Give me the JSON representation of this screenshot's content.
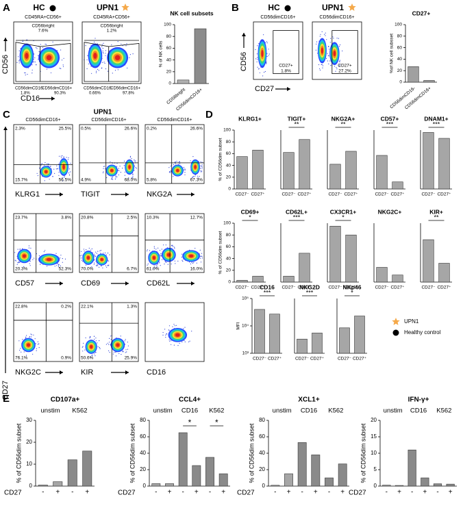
{
  "panel_a": {
    "label": "A",
    "y_axis": "CD56",
    "x_axis": "CD16",
    "plots": [
      {
        "title": "HC",
        "gate": "CD45RA+CD56+",
        "top": [
          "CD56bright",
          "7.6%"
        ],
        "bottom_left": [
          "CD56dimCD16-",
          "1.8%"
        ],
        "bottom_right": [
          "CD56dimCD16+",
          "90.3%"
        ]
      },
      {
        "title": "UPN1",
        "gate": "CD45RA+CD56+",
        "top": [
          "CD56bright",
          "1.2%"
        ],
        "bottom_left": [
          "CD56dimCD16-",
          "0.66%"
        ],
        "bottom_right": [
          "CD56dimCD16+",
          "97.8%"
        ]
      }
    ]
  },
  "panel_b": {
    "label": "B",
    "y_axis": "CD56",
    "x_axis": "CD27",
    "plots": [
      {
        "title": "HC",
        "gate": "CD56dimCD16+",
        "inner": [
          "CD27+",
          "1.8%"
        ]
      },
      {
        "title": "UPN1",
        "gate": "CD56dimCD16+",
        "inner": [
          "CD27+",
          "27.2%"
        ]
      }
    ]
  },
  "panel_c": {
    "label": "C",
    "title": "UPN1",
    "y_axis": "CD27",
    "plots": [
      {
        "gate": "CD56dimCD16+",
        "x_axis": "KLRG1",
        "quadrants": [
          "2.3%",
          "25.5%",
          "15.7%",
          "56.5%"
        ]
      },
      {
        "gate": "CD56dimCD16+",
        "x_axis": "TIGIT",
        "quadrants": [
          "0.5%",
          "26.6%",
          "4.9%",
          "68.0%"
        ]
      },
      {
        "gate": "CD56dimCD16+",
        "x_axis": "NKG2A",
        "quadrants": [
          "0.2%",
          "26.6%",
          "5.8%",
          "67.3%"
        ]
      },
      {
        "x_axis": "CD57",
        "quadrants": [
          "23.7%",
          "3.8%",
          "20.3%",
          "52.3%"
        ]
      },
      {
        "x_axis": "CD69",
        "quadrants": [
          "20.8%",
          "2.5%",
          "70.0%",
          "6.7%"
        ]
      },
      {
        "x_axis": "CD62L",
        "quadrants": [
          "10.3%",
          "12.7%",
          "61.0%",
          "16.0%"
        ]
      },
      {
        "x_axis": "NKG2C",
        "quadrants": [
          "22.8%",
          "0.2%",
          "76.1%",
          "0.9%"
        ]
      },
      {
        "x_axis": "KIR",
        "quadrants": [
          "22.1%",
          "1.3%",
          "50.6%",
          "25.9%"
        ]
      },
      {
        "x_axis": "CD16"
      }
    ]
  },
  "panel_d": {
    "label": "D",
    "legend": [
      "UPN1",
      "Healthy control"
    ]
  },
  "panel_e": {
    "label": "E"
  },
  "chart_data": [
    {
      "type": "bar",
      "title": "NK cell subsets",
      "ylabel": "% of NK cells",
      "categories": [
        "CD56bright",
        "CD56dimCD16+"
      ],
      "values": [
        6,
        93
      ],
      "ylim": [
        0,
        100
      ],
      "yticks": [
        0,
        20,
        40,
        60,
        80,
        100
      ],
      "colors": [
        "#b0b0b0",
        "#8c8c8c"
      ]
    },
    {
      "type": "bar",
      "title": "CD27+",
      "ylabel": "%of NK cell subsset",
      "categories": [
        "CD56dimCD16-",
        "CD56dimCD16+"
      ],
      "values": [
        27,
        3
      ],
      "ylim": [
        0,
        100
      ],
      "yticks": [
        0,
        20,
        40,
        60,
        80,
        100
      ],
      "colors": [
        "#a0a0a0",
        "#a0a0a0"
      ]
    },
    {
      "type": "bar",
      "title": "KLRG1+",
      "ylabel": "% of CD56dim subset",
      "categories": [
        "CD27⁻",
        "CD27⁺"
      ],
      "values": [
        55,
        66
      ],
      "ylim": [
        0,
        100
      ],
      "yticks": [
        0,
        20,
        40,
        60,
        80,
        100
      ],
      "colors": [
        "#a6a6a6",
        "#a6a6a6"
      ]
    },
    {
      "type": "bar",
      "title": "TIGIT+",
      "categories": [
        "CD27⁻",
        "CD27⁺"
      ],
      "values": [
        62,
        84
      ],
      "ylim": [
        0,
        100
      ],
      "significance": [
        "**"
      ],
      "colors": [
        "#a6a6a6",
        "#a6a6a6"
      ]
    },
    {
      "type": "bar",
      "title": "NKG2A+",
      "categories": [
        "CD27⁻",
        "CD27⁺"
      ],
      "values": [
        42,
        64
      ],
      "ylim": [
        0,
        100
      ],
      "significance": [
        "**"
      ],
      "colors": [
        "#a6a6a6",
        "#a6a6a6"
      ]
    },
    {
      "type": "bar",
      "title": "CD57+",
      "categories": [
        "CD27⁻",
        "CD27⁺"
      ],
      "values": [
        57,
        12
      ],
      "ylim": [
        0,
        100
      ],
      "significance": [
        "***"
      ],
      "colors": [
        "#a6a6a6",
        "#a6a6a6"
      ]
    },
    {
      "type": "bar",
      "title": "DNAM1+",
      "categories": [
        "CD27⁻",
        "CD27⁺"
      ],
      "values": [
        96,
        86
      ],
      "ylim": [
        0,
        100
      ],
      "significance": [
        "***"
      ],
      "colors": [
        "#a6a6a6",
        "#a6a6a6"
      ]
    },
    {
      "type": "bar",
      "title": "CD69+",
      "ylabel": "% of CD56dim subset",
      "categories": [
        "CD27⁻",
        "CD27⁺"
      ],
      "values": [
        3,
        10
      ],
      "ylim": [
        0,
        100
      ],
      "yticks": [
        0,
        20,
        40,
        60,
        80,
        100
      ],
      "significance": [
        "*"
      ],
      "colors": [
        "#a6a6a6",
        "#a6a6a6"
      ]
    },
    {
      "type": "bar",
      "title": "CD62L+",
      "categories": [
        "CD27⁻",
        "CD27⁺"
      ],
      "values": [
        10,
        49
      ],
      "ylim": [
        0,
        100
      ],
      "significance": [
        "***"
      ],
      "colors": [
        "#a6a6a6",
        "#a6a6a6"
      ]
    },
    {
      "type": "bar",
      "title": "CX3CR1+",
      "categories": [
        "CD27⁻",
        "CD27⁺"
      ],
      "values": [
        95,
        80
      ],
      "ylim": [
        0,
        100
      ],
      "significance": [
        "*"
      ],
      "colors": [
        "#a6a6a6",
        "#a6a6a6"
      ]
    },
    {
      "type": "bar",
      "title": "NKG2C+",
      "categories": [
        "CD27⁻",
        "CD27⁺"
      ],
      "values": [
        25,
        12
      ],
      "ylim": [
        0,
        100
      ],
      "colors": [
        "#a6a6a6",
        "#a6a6a6"
      ]
    },
    {
      "type": "bar",
      "title": "KIR+",
      "categories": [
        "CD27⁻",
        "CD27⁺"
      ],
      "values": [
        72,
        32
      ],
      "ylim": [
        0,
        100
      ],
      "significance": [
        "**"
      ],
      "colors": [
        "#a6a6a6",
        "#a6a6a6"
      ]
    },
    {
      "type": "bar",
      "title": "CD16",
      "ylabel": "MFI",
      "log_scale": true,
      "categories": [
        "CD27⁻",
        "CD27⁺"
      ],
      "values": [
        40000,
        27000
      ],
      "ylim": [
        1000,
        100000
      ],
      "yticks": [
        {
          "value": 1000,
          "label": "10³"
        },
        {
          "value": 10000,
          "label": "10⁴"
        },
        {
          "value": 100000,
          "label": "10⁵"
        }
      ],
      "significance": [
        "***"
      ],
      "colors": [
        "#a6a6a6",
        "#a6a6a6"
      ]
    },
    {
      "type": "bar",
      "title": "NKG2D",
      "log_scale": true,
      "categories": [
        "CD27⁻",
        "CD27⁺"
      ],
      "values": [
        3300,
        5500
      ],
      "ylim": [
        1000,
        100000
      ],
      "significance": [
        "***"
      ],
      "colors": [
        "#a6a6a6",
        "#a6a6a6"
      ]
    },
    {
      "type": "bar",
      "title": "NKp46",
      "log_scale": true,
      "categories": [
        "CD27⁻",
        "CD27⁺"
      ],
      "values": [
        8500,
        23000
      ],
      "ylim": [
        1000,
        100000
      ],
      "significance": [
        "*"
      ],
      "colors": [
        "#a6a6a6",
        "#a6a6a6"
      ]
    },
    {
      "type": "bar",
      "title": "CD107a+",
      "ylabel": "% of CD56dim subset",
      "xlabel": "CD27",
      "groups": [
        "unstim",
        "K562"
      ],
      "categories": [
        "-",
        "+",
        "-",
        "+"
      ],
      "values": [
        0.5,
        2,
        12,
        16
      ],
      "ylim": [
        0,
        30
      ],
      "yticks": [
        0,
        10,
        20,
        30
      ],
      "colors": [
        "#a6a6a6",
        "#a6a6a6",
        "#8a8a8a",
        "#8a8a8a"
      ]
    },
    {
      "type": "bar",
      "title": "CCL4+",
      "ylabel": "% of CD56dim subset",
      "xlabel": "CD27",
      "groups": [
        "unstim",
        "CD16",
        "K562"
      ],
      "categories": [
        "-",
        "+",
        "-",
        "+",
        "-",
        "+"
      ],
      "values": [
        3,
        3,
        65,
        25,
        35,
        15
      ],
      "ylim": [
        0,
        80
      ],
      "yticks": [
        0,
        20,
        40,
        60,
        80
      ],
      "significance": [
        null,
        "*",
        "*"
      ],
      "colors": [
        "#a6a6a6",
        "#a6a6a6",
        "#8a8a8a",
        "#8a8a8a",
        "#8a8a8a",
        "#8a8a8a"
      ]
    },
    {
      "type": "bar",
      "title": "XCL1+",
      "ylabel": "% of CD56dim subset",
      "xlabel": "CD27",
      "groups": [
        "unstim",
        "CD16",
        "K562"
      ],
      "categories": [
        "-",
        "+",
        "-",
        "+",
        "-",
        "+"
      ],
      "values": [
        1,
        15,
        53,
        38,
        10,
        27
      ],
      "ylim": [
        0,
        80
      ],
      "yticks": [
        0,
        20,
        40,
        60,
        80
      ],
      "colors": [
        "#a6a6a6",
        "#a6a6a6",
        "#8a8a8a",
        "#8a8a8a",
        "#8a8a8a",
        "#8a8a8a"
      ]
    },
    {
      "type": "bar",
      "title": "IFN-γ+",
      "ylabel": "% of CD56dim subset",
      "xlabel": "CD27",
      "groups": [
        "unstim",
        "CD16",
        "K562"
      ],
      "categories": [
        "-",
        "+",
        "-",
        "+",
        "-",
        "+"
      ],
      "values": [
        0.3,
        0.2,
        11,
        2.5,
        0.7,
        0.6
      ],
      "ylim": [
        0,
        20
      ],
      "yticks": [
        0,
        5,
        10,
        15,
        20
      ],
      "colors": [
        "#a6a6a6",
        "#a6a6a6",
        "#8a8a8a",
        "#8a8a8a",
        "#8a8a8a",
        "#8a8a8a"
      ]
    }
  ]
}
